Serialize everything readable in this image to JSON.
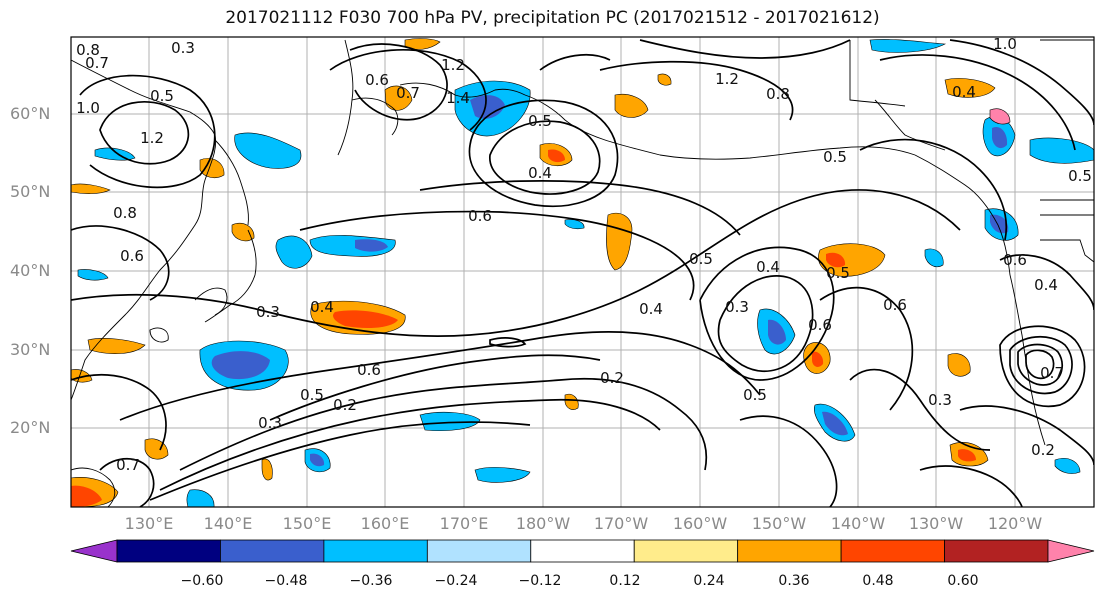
{
  "title": "2017021112 F030 700 hPa PV, precipitation PC (2017021512 - 2017021612)",
  "map": {
    "lat_ticks": [
      "60°N",
      "50°N",
      "40°N",
      "30°N",
      "20°N"
    ],
    "lon_ticks": [
      "130°E",
      "140°E",
      "150°E",
      "160°E",
      "170°E",
      "180°W",
      "170°W",
      "160°W",
      "150°W",
      "140°W",
      "130°W",
      "120°W"
    ],
    "contour_labels": [
      "0.8",
      "0.7",
      "0.3",
      "1.0",
      "0.5",
      "1.2",
      "0.6",
      "1.2",
      "0.5",
      "0.4",
      "0.7",
      "1.4",
      "1.2",
      "0.8",
      "1.0",
      "0.5",
      "0.6",
      "0.8",
      "0.6",
      "0.3",
      "0.4",
      "0.4",
      "0.6",
      "0.5",
      "0.5",
      "0.3",
      "0.4",
      "0.6",
      "0.6",
      "0.2",
      "0.3",
      "0.5",
      "0.2",
      "0.5",
      "0.3",
      "0.2",
      "0.7",
      "0.5",
      "0.4",
      "0.6",
      "0.4",
      "0.7"
    ],
    "colors": {
      "coast": "#000000",
      "contour": "#000000",
      "grid": "#b0b0b0"
    }
  },
  "colorbar": {
    "ticks": [
      "−0.60",
      "−0.48",
      "−0.36",
      "−0.24",
      "−0.12",
      "0.12",
      "0.24",
      "0.36",
      "0.48",
      "0.60"
    ],
    "colors": [
      "#9932cc",
      "#000080",
      "#3a5fcd",
      "#00bfff",
      "#b0e2ff",
      "#ffffff",
      "#ffec8b",
      "#ffa500",
      "#ff4500",
      "#b22222",
      "#ff82ab"
    ]
  }
}
